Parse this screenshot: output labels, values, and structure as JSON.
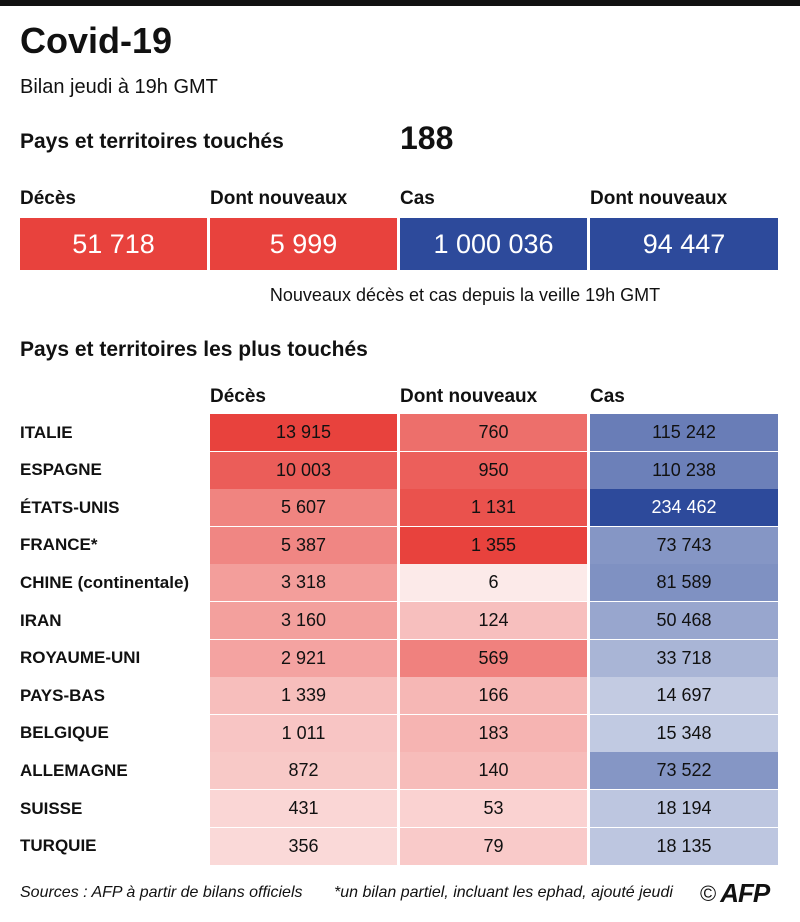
{
  "title": "Covid-19",
  "subtitle": "Bilan jeudi à 19h GMT",
  "countries_label": "Pays et territoires touchés",
  "countries_value": "188",
  "totals": [
    {
      "label": "Décès",
      "value": "51 718",
      "color": "#e8423d"
    },
    {
      "label": "Dont nouveaux",
      "value": "5 999",
      "color": "#e8423d"
    },
    {
      "label": "Cas",
      "value": "1 000 036",
      "color": "#2d4a9b"
    },
    {
      "label": "Dont nouveaux",
      "value": "94 447",
      "color": "#2d4a9b"
    }
  ],
  "note": "Nouveaux décès et cas depuis la veille 19h GMT",
  "most_affected_title": "Pays et territoires les plus touchés",
  "columns": [
    "Décès",
    "Dont nouveaux",
    "Cas"
  ],
  "chart_data": {
    "type": "table",
    "title": "Pays et territoires les plus touchés",
    "columns": [
      "Décès",
      "Dont nouveaux",
      "Cas"
    ],
    "rows": [
      {
        "country": "ITALIE",
        "deaths": 13915,
        "new_deaths": 760,
        "cases": 115242,
        "deaths_label": "13 915",
        "new_label": "760",
        "cases_label": "115 242"
      },
      {
        "country": "ESPAGNE",
        "deaths": 10003,
        "new_deaths": 950,
        "cases": 110238,
        "deaths_label": "10 003",
        "new_label": "950",
        "cases_label": "110 238"
      },
      {
        "country": "ÉTATS-UNIS",
        "deaths": 5607,
        "new_deaths": 1131,
        "cases": 234462,
        "deaths_label": "5 607",
        "new_label": "1 131",
        "cases_label": "234 462"
      },
      {
        "country": "FRANCE*",
        "deaths": 5387,
        "new_deaths": 1355,
        "cases": 73743,
        "deaths_label": "5 387",
        "new_label": "1 355",
        "cases_label": "73 743"
      },
      {
        "country": "CHINE (continentale)",
        "deaths": 3318,
        "new_deaths": 6,
        "cases": 81589,
        "deaths_label": "3 318",
        "new_label": "6",
        "cases_label": "81 589"
      },
      {
        "country": "IRAN",
        "deaths": 3160,
        "new_deaths": 124,
        "cases": 50468,
        "deaths_label": "3 160",
        "new_label": "124",
        "cases_label": "50 468"
      },
      {
        "country": "ROYAUME-UNI",
        "deaths": 2921,
        "new_deaths": 569,
        "cases": 33718,
        "deaths_label": "2 921",
        "new_label": "569",
        "cases_label": "33 718"
      },
      {
        "country": "PAYS-BAS",
        "deaths": 1339,
        "new_deaths": 166,
        "cases": 14697,
        "deaths_label": "1 339",
        "new_label": "166",
        "cases_label": "14 697"
      },
      {
        "country": "BELGIQUE",
        "deaths": 1011,
        "new_deaths": 183,
        "cases": 15348,
        "deaths_label": "1 011",
        "new_label": "183",
        "cases_label": "15 348"
      },
      {
        "country": "ALLEMAGNE",
        "deaths": 872,
        "new_deaths": 140,
        "cases": 73522,
        "deaths_label": "872",
        "new_label": "140",
        "cases_label": "73 522"
      },
      {
        "country": "SUISSE",
        "deaths": 431,
        "new_deaths": 53,
        "cases": 18194,
        "deaths_label": "431",
        "new_label": "53",
        "cases_label": "18 194"
      },
      {
        "country": "TURQUIE",
        "deaths": 356,
        "new_deaths": 79,
        "cases": 18135,
        "deaths_label": "356",
        "new_label": "79",
        "cases_label": "18 135"
      }
    ]
  },
  "colors": {
    "red": "#e8423d",
    "blue": "#2d4a9b"
  },
  "footer_sources": "Sources : AFP à partir de bilans officiels",
  "footer_note": "*un bilan partiel, incluant les ephad, ajouté jeudi",
  "copyright_symbol": "©",
  "logo_text": "AFP"
}
